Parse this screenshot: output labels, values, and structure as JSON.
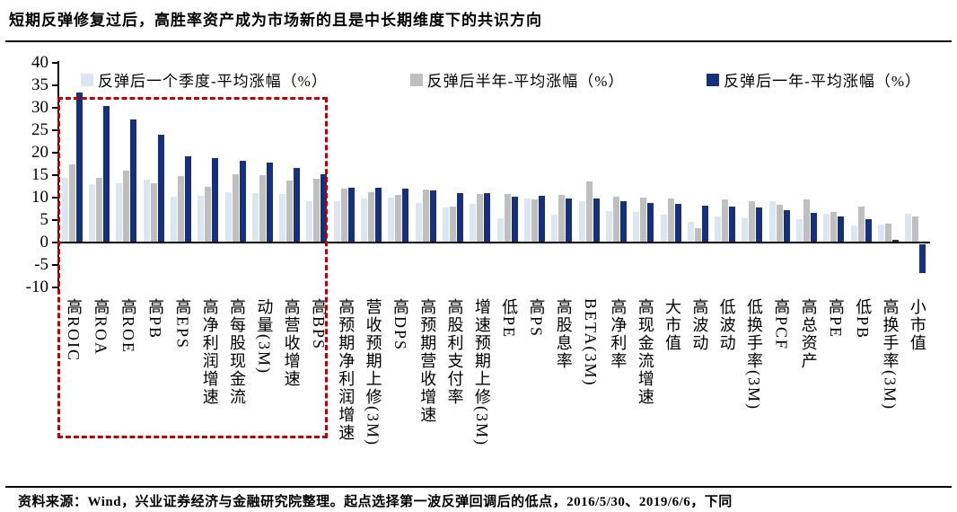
{
  "title": "短期反弹修复过后，高胜率资产成为市场新的且是中长期维度下的共识方向",
  "footer": "资料来源：Wind，兴业证券经济与金融研究院整理。起点选择第一波反弹回调后的低点，2016/5/30、2019/6/6，下同",
  "chart_data": {
    "type": "bar",
    "title": "",
    "xlabel": "",
    "ylabel": "",
    "ylim": [
      -10,
      40
    ],
    "yticks": [
      40,
      35,
      30,
      25,
      20,
      15,
      10,
      5,
      0,
      -5,
      -10
    ],
    "grid": false,
    "legend_position": "top",
    "highlight_box": {
      "color": "#C00000",
      "style": "dashed",
      "covers_categories": [
        "高ROIC",
        "高ROA",
        "高ROE",
        "高PB",
        "高EPS",
        "高净利润增速",
        "高每股现金流",
        "动量(3M)",
        "高营收增速",
        "高BPS"
      ]
    },
    "categories": [
      "高ROIC",
      "高ROA",
      "高ROE",
      "高PB",
      "高EPS",
      "高净利润增速",
      "高每股现金流",
      "动量(3M)",
      "高营收增速",
      "高BPS",
      "高预期净利润增速",
      "营收预期上修(3M)",
      "高DPS",
      "高预期营收增速",
      "高股利支付率",
      "增速预期上修(3M)",
      "低PE",
      "高PS",
      "高股息率",
      "BETA(3M)",
      "高净利率",
      "高现金流增速",
      "大市值",
      "高波动",
      "低波动",
      "低换手率(3M)",
      "高PCF",
      "高总资产",
      "高PE",
      "低PB",
      "高换手率(3M)",
      "小市值"
    ],
    "series": [
      {
        "name": "反弹后一个季度-平均涨幅（%）",
        "color": "#DCE6F1",
        "values": [
          14.5,
          13.0,
          13.3,
          14.0,
          10.3,
          10.5,
          11.2,
          11.1,
          10.8,
          9.3,
          9.3,
          9.8,
          10.1,
          8.8,
          7.8,
          8.7,
          5.4,
          9.9,
          6.3,
          9.3,
          7.1,
          6.9,
          6.3,
          4.7,
          5.9,
          5.5,
          9.3,
          5.3,
          6.5,
          3.9,
          4.1,
          6.5
        ]
      },
      {
        "name": "反弹后半年-平均涨幅（%）",
        "color": "#BFBFBF",
        "values": [
          17.5,
          14.5,
          16.0,
          13.3,
          14.8,
          12.4,
          15.2,
          15.0,
          13.9,
          14.3,
          12.1,
          11.3,
          10.6,
          11.8,
          8.0,
          10.9,
          10.8,
          9.6,
          10.7,
          13.7,
          10.2,
          10.0,
          9.9,
          3.3,
          9.6,
          9.3,
          8.5,
          9.6,
          6.8,
          8.1,
          4.3,
          5.9
        ]
      },
      {
        "name": "反弹后一年-平均涨幅（%）",
        "color": "#15317E",
        "values": [
          33.5,
          30.5,
          27.5,
          24.0,
          19.2,
          18.8,
          18.2,
          17.9,
          16.6,
          15.3,
          12.3,
          12.3,
          12.0,
          11.7,
          11.0,
          11.0,
          10.3,
          10.5,
          9.9,
          9.9,
          9.3,
          8.8,
          8.7,
          8.3,
          8.0,
          7.9,
          7.3,
          6.7,
          5.9,
          5.3,
          0.7,
          -6.3
        ]
      }
    ]
  }
}
